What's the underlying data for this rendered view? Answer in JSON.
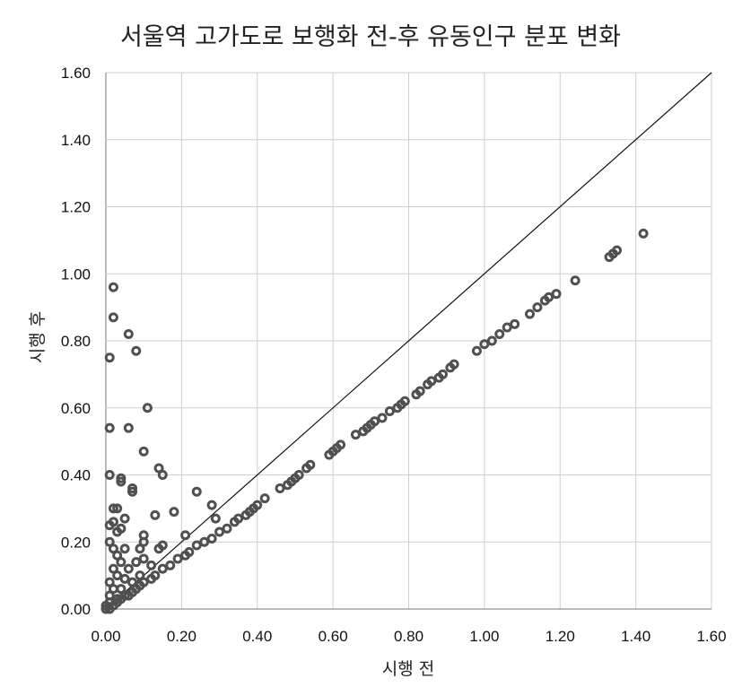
{
  "chart_data": {
    "type": "scatter",
    "title": "서울역 고가도로 보행화 전-후 유동인구 분포 변화",
    "xlabel": "시행 전",
    "ylabel": "시행 후",
    "xlim": [
      0,
      1.6
    ],
    "ylim": [
      0,
      1.6
    ],
    "x_ticks": [
      "0.00",
      "0.20",
      "0.40",
      "0.60",
      "0.80",
      "1.00",
      "1.20",
      "1.40",
      "1.60"
    ],
    "y_ticks": [
      "0.00",
      "0.20",
      "0.40",
      "0.60",
      "0.80",
      "1.00",
      "1.20",
      "1.40",
      "1.60"
    ],
    "grid": true,
    "legend": "none",
    "reference_line": {
      "x": [
        0,
        1.6
      ],
      "y": [
        0,
        1.6
      ]
    },
    "marker_color": "#505050",
    "points": [
      [
        0.02,
        0.96
      ],
      [
        0.02,
        0.87
      ],
      [
        0.06,
        0.82
      ],
      [
        0.01,
        0.75
      ],
      [
        0.08,
        0.77
      ],
      [
        0.11,
        0.6
      ],
      [
        0.01,
        0.54
      ],
      [
        0.06,
        0.54
      ],
      [
        0.1,
        0.47
      ],
      [
        0.14,
        0.42
      ],
      [
        0.15,
        0.4
      ],
      [
        0.01,
        0.4
      ],
      [
        0.04,
        0.39
      ],
      [
        0.04,
        0.38
      ],
      [
        0.07,
        0.36
      ],
      [
        0.07,
        0.35
      ],
      [
        0.24,
        0.35
      ],
      [
        0.28,
        0.31
      ],
      [
        0.29,
        0.27
      ],
      [
        0.18,
        0.29
      ],
      [
        0.13,
        0.28
      ],
      [
        0.02,
        0.3
      ],
      [
        0.03,
        0.3
      ],
      [
        0.01,
        0.25
      ],
      [
        0.02,
        0.26
      ],
      [
        0.05,
        0.27
      ],
      [
        0.03,
        0.23
      ],
      [
        0.04,
        0.24
      ],
      [
        0.1,
        0.22
      ],
      [
        0.1,
        0.2
      ],
      [
        0.09,
        0.18
      ],
      [
        0.05,
        0.18
      ],
      [
        0.21,
        0.22
      ],
      [
        0.15,
        0.19
      ],
      [
        0.14,
        0.18
      ],
      [
        0.02,
        0.18
      ],
      [
        0.03,
        0.16
      ],
      [
        0.01,
        0.2
      ],
      [
        0.04,
        0.14
      ],
      [
        0.08,
        0.14
      ],
      [
        0.1,
        0.15
      ],
      [
        0.12,
        0.13
      ],
      [
        0.09,
        0.1
      ],
      [
        0.02,
        0.12
      ],
      [
        0.06,
        0.12
      ],
      [
        0.03,
        0.1
      ],
      [
        0.05,
        0.09
      ],
      [
        0.07,
        0.08
      ],
      [
        0.01,
        0.08
      ],
      [
        0.02,
        0.06
      ],
      [
        0.04,
        0.06
      ],
      [
        0.01,
        0.04
      ],
      [
        0.03,
        0.03
      ],
      [
        0.01,
        0.02
      ],
      [
        0.0,
        0.0
      ],
      [
        0.0,
        0.01
      ],
      [
        0.01,
        0.0
      ],
      [
        0.02,
        0.01
      ],
      [
        0.03,
        0.02
      ],
      [
        0.04,
        0.03
      ],
      [
        0.05,
        0.04
      ],
      [
        0.06,
        0.04
      ],
      [
        0.07,
        0.05
      ],
      [
        0.08,
        0.06
      ],
      [
        0.09,
        0.07
      ],
      [
        0.1,
        0.08
      ],
      [
        0.12,
        0.09
      ],
      [
        0.13,
        0.1
      ],
      [
        0.15,
        0.12
      ],
      [
        0.17,
        0.13
      ],
      [
        0.19,
        0.15
      ],
      [
        0.21,
        0.16
      ],
      [
        0.22,
        0.17
      ],
      [
        0.24,
        0.19
      ],
      [
        0.26,
        0.2
      ],
      [
        0.28,
        0.21
      ],
      [
        0.3,
        0.23
      ],
      [
        0.32,
        0.24
      ],
      [
        0.34,
        0.26
      ],
      [
        0.35,
        0.27
      ],
      [
        0.37,
        0.28
      ],
      [
        0.38,
        0.29
      ],
      [
        0.39,
        0.3
      ],
      [
        0.4,
        0.31
      ],
      [
        0.42,
        0.33
      ],
      [
        0.46,
        0.36
      ],
      [
        0.48,
        0.37
      ],
      [
        0.49,
        0.38
      ],
      [
        0.5,
        0.39
      ],
      [
        0.51,
        0.4
      ],
      [
        0.53,
        0.42
      ],
      [
        0.54,
        0.43
      ],
      [
        0.59,
        0.46
      ],
      [
        0.6,
        0.47
      ],
      [
        0.61,
        0.48
      ],
      [
        0.62,
        0.49
      ],
      [
        0.66,
        0.52
      ],
      [
        0.68,
        0.53
      ],
      [
        0.69,
        0.54
      ],
      [
        0.7,
        0.55
      ],
      [
        0.71,
        0.56
      ],
      [
        0.73,
        0.57
      ],
      [
        0.75,
        0.59
      ],
      [
        0.77,
        0.6
      ],
      [
        0.78,
        0.61
      ],
      [
        0.79,
        0.62
      ],
      [
        0.82,
        0.64
      ],
      [
        0.83,
        0.65
      ],
      [
        0.85,
        0.67
      ],
      [
        0.86,
        0.68
      ],
      [
        0.88,
        0.69
      ],
      [
        0.89,
        0.7
      ],
      [
        0.91,
        0.72
      ],
      [
        0.92,
        0.73
      ],
      [
        0.98,
        0.77
      ],
      [
        1.0,
        0.79
      ],
      [
        1.02,
        0.8
      ],
      [
        1.04,
        0.82
      ],
      [
        1.06,
        0.84
      ],
      [
        1.08,
        0.85
      ],
      [
        1.12,
        0.88
      ],
      [
        1.14,
        0.9
      ],
      [
        1.16,
        0.92
      ],
      [
        1.17,
        0.93
      ],
      [
        1.19,
        0.94
      ],
      [
        1.24,
        0.98
      ],
      [
        1.33,
        1.05
      ],
      [
        1.34,
        1.06
      ],
      [
        1.35,
        1.07
      ],
      [
        1.42,
        1.12
      ]
    ]
  }
}
